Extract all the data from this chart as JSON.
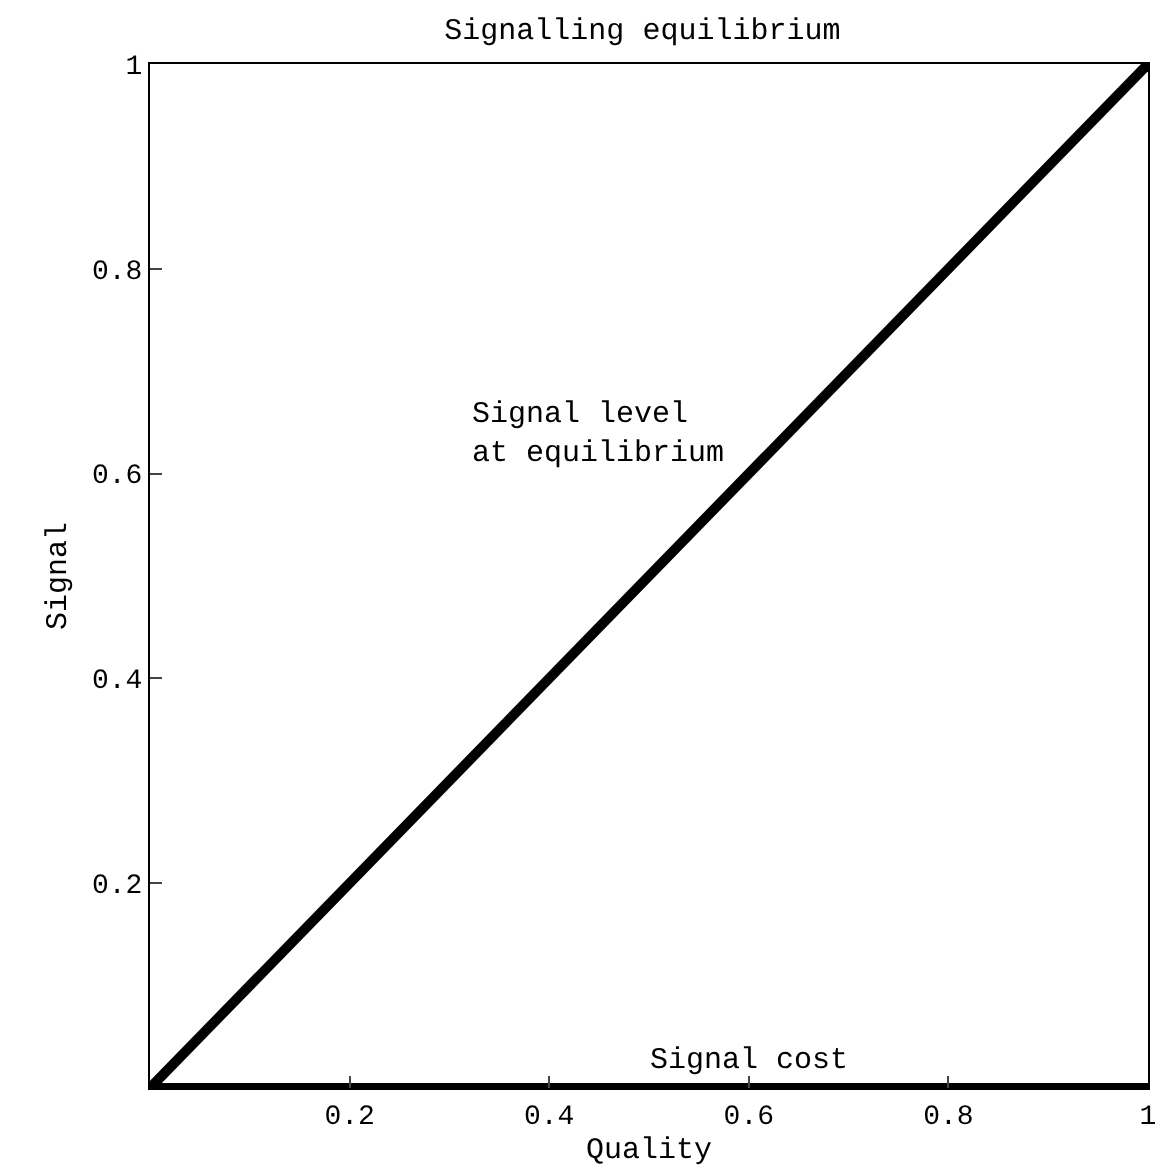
{
  "chart_data": {
    "type": "line",
    "title": "Signalling equilibrium",
    "xlabel": "Quality",
    "ylabel": "Signal",
    "x": [
      0,
      1
    ],
    "series": [
      {
        "name": "Signal level\nat equilibrium",
        "color": "#000000",
        "values": [
          0,
          1
        ]
      },
      {
        "name": "Signal cost",
        "color": "#000000",
        "values": [
          0,
          0
        ]
      }
    ],
    "xlim": [
      0,
      1
    ],
    "ylim": [
      0,
      1
    ],
    "xticks": [
      0.2,
      0.4,
      0.6,
      0.8,
      1
    ],
    "yticks": [
      0.2,
      0.4,
      0.6,
      0.8,
      1
    ],
    "legend": false,
    "marker": "none",
    "line_style": "solid"
  }
}
